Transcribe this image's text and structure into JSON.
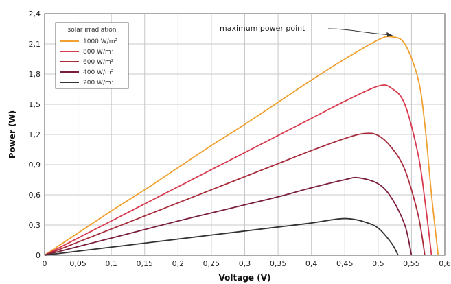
{
  "chart_data": {
    "type": "line",
    "xlabel": "Voltage (V)",
    "ylabel": "Power (W)",
    "xlim": [
      0,
      0.6
    ],
    "ylim": [
      0,
      2.4
    ],
    "x_ticks": [
      "0",
      "0,05",
      "0,1",
      "0,15",
      "0,2",
      "0,25",
      "0,3",
      "0,35",
      "0,4",
      "0,45",
      "0,5",
      "0,55",
      "0,6"
    ],
    "y_ticks": [
      "0",
      "0,3",
      "0,6",
      "0,9",
      "1,2",
      "1,5",
      "1,8",
      "2,1",
      "2,4"
    ],
    "grid": true,
    "legend": {
      "title": "solar irradiation",
      "placement": "top-left"
    },
    "annotation": {
      "text": "maximum power point",
      "x": 0.522,
      "y": 2.17
    },
    "series": [
      {
        "name": "1000 W/m²",
        "color": "#f0a030",
        "x": [
          0,
          0.05,
          0.1,
          0.15,
          0.2,
          0.25,
          0.3,
          0.35,
          0.4,
          0.45,
          0.5,
          0.52,
          0.54,
          0.56,
          0.57,
          0.58,
          0.59
        ],
        "y": [
          0,
          0.22,
          0.44,
          0.65,
          0.87,
          1.09,
          1.3,
          1.52,
          1.74,
          1.95,
          2.14,
          2.17,
          2.1,
          1.75,
          1.3,
          0.6,
          0
        ]
      },
      {
        "name": "800 W/m²",
        "color": "#d83a4e",
        "x": [
          0,
          0.05,
          0.1,
          0.15,
          0.2,
          0.25,
          0.3,
          0.35,
          0.4,
          0.45,
          0.5,
          0.52,
          0.54,
          0.56,
          0.57,
          0.58
        ],
        "y": [
          0,
          0.17,
          0.34,
          0.51,
          0.68,
          0.85,
          1.02,
          1.19,
          1.36,
          1.53,
          1.68,
          1.66,
          1.5,
          1.0,
          0.55,
          0
        ]
      },
      {
        "name": "600 W/m²",
        "color": "#a82c3c",
        "x": [
          0,
          0.05,
          0.1,
          0.15,
          0.2,
          0.25,
          0.3,
          0.35,
          0.4,
          0.45,
          0.48,
          0.5,
          0.52,
          0.54,
          0.56,
          0.57
        ],
        "y": [
          0,
          0.13,
          0.26,
          0.39,
          0.52,
          0.65,
          0.78,
          0.91,
          1.04,
          1.16,
          1.21,
          1.19,
          1.07,
          0.85,
          0.4,
          0
        ]
      },
      {
        "name": "400 W/m²",
        "color": "#7a1f3a",
        "x": [
          0,
          0.05,
          0.1,
          0.15,
          0.2,
          0.25,
          0.3,
          0.35,
          0.4,
          0.45,
          0.47,
          0.5,
          0.52,
          0.54,
          0.55
        ],
        "y": [
          0,
          0.085,
          0.17,
          0.255,
          0.34,
          0.42,
          0.5,
          0.58,
          0.67,
          0.75,
          0.77,
          0.71,
          0.57,
          0.3,
          0
        ]
      },
      {
        "name": "200 W/m²",
        "color": "#333333",
        "x": [
          0,
          0.05,
          0.1,
          0.15,
          0.2,
          0.25,
          0.3,
          0.35,
          0.4,
          0.44,
          0.46,
          0.48,
          0.5,
          0.52,
          0.53
        ],
        "y": [
          0,
          0.04,
          0.08,
          0.12,
          0.16,
          0.2,
          0.24,
          0.28,
          0.32,
          0.36,
          0.36,
          0.33,
          0.27,
          0.12,
          0
        ]
      }
    ]
  }
}
